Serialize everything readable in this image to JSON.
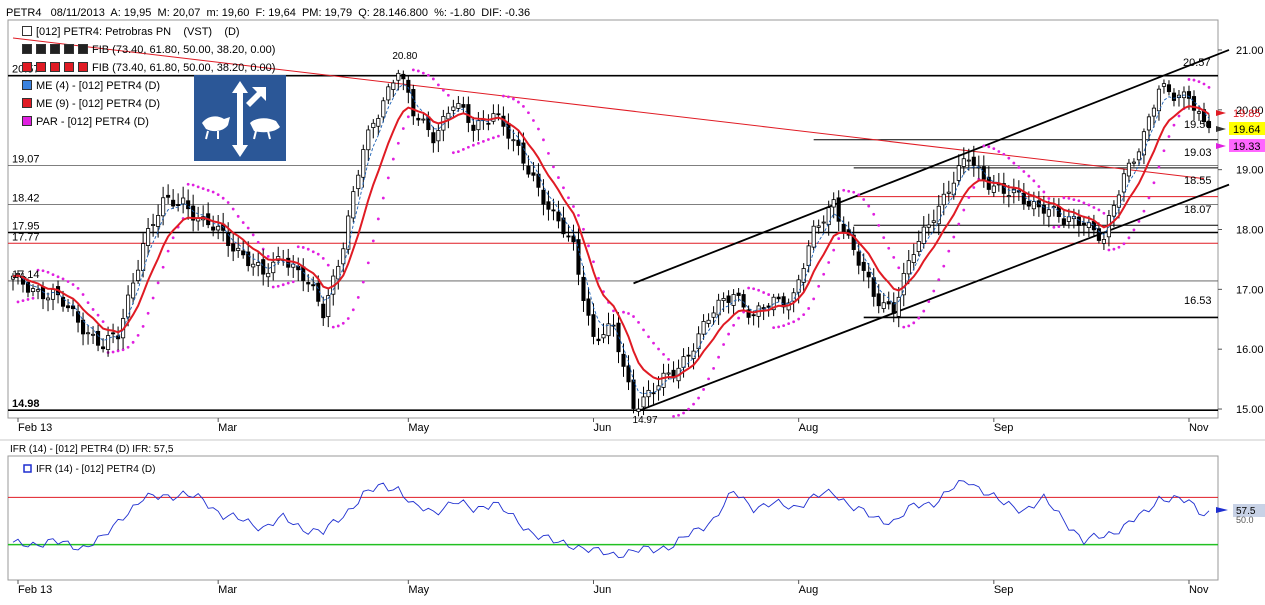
{
  "header": {
    "symbol": "PETR4",
    "date": "08/11/2013",
    "a_label": "A:",
    "a_value": "19,95",
    "m_label": "M:",
    "m_value": "20,07",
    "min_label": "m:",
    "min_value": "19,60",
    "f_label": "F:",
    "f_value": "19,64",
    "pm_label": "PM:",
    "pm_value": "19,79",
    "q_label": "Q:",
    "q_value": "28.146.800",
    "pct_label": "%:",
    "pct_value": "-1.80",
    "dif_label": "DIF:",
    "dif_value": "-0.36"
  },
  "legend": {
    "title": "[012] PETR4: Petrobras PN",
    "title_suffix": "(VST)",
    "title_period": "(D)",
    "fib1": "FIB (73.40, 61.80, 50.00, 38.20, 0.00)",
    "fib2": "FIB (73.40, 61.80, 50.00, 38.20, 0.00)",
    "me4": "ME (4)  - [012] PETR4 (D)",
    "me9": "ME (9)  - [012] PETR4 (D)",
    "par": "PAR  - [012] PETR4 (D)"
  },
  "ifr": {
    "title": "IFR (14)  - [012] PETR4 (D)  IFR: 57,5",
    "legend": "IFR (14)  - [012] PETR4 (D)",
    "value_label": "57.5",
    "ref_label": "50.0",
    "upper": 70,
    "lower": 30
  },
  "colors": {
    "candle_up": "#ffffff",
    "candle_down": "#000000",
    "me4": "#1a5fb4",
    "me9": "#e01b24",
    "par": "#e020e0",
    "ifr": "#1f2fd0",
    "ifr_upper": "#e01b24",
    "ifr_lower": "#22c022"
  },
  "chart_data": {
    "type": "candlestick",
    "y_ticks": [
      "21.00",
      "20.00",
      "19.00",
      "18.00",
      "17.00",
      "16.00",
      "15.00"
    ],
    "ylim": [
      14.85,
      21.2
    ],
    "x_labels": [
      "Feb 13",
      "Mar",
      "May",
      "Jun",
      "Aug",
      "Sep",
      "Nov"
    ],
    "x_tick_values": [
      1,
      41,
      79,
      116,
      157,
      196,
      235
    ],
    "n_bars": 240,
    "right_prices": [
      {
        "label": "20.57",
        "value": 20.57
      },
      {
        "label": "19.85",
        "value": 19.85,
        "color": "#e01b24"
      },
      {
        "label": "19.64",
        "value": 19.64,
        "bg": "#ffff00"
      },
      {
        "label": "19.50",
        "value": 19.5
      },
      {
        "label": "19.33",
        "value": 19.33,
        "bg": "#ff66ff"
      },
      {
        "label": "19.03",
        "value": 19.03
      },
      {
        "label": "18.55",
        "value": 18.55
      },
      {
        "label": "18.07",
        "value": 18.07
      },
      {
        "label": "16.53",
        "value": 16.53
      }
    ],
    "left_levels": [
      {
        "label": "20.57",
        "value": 20.57
      },
      {
        "label": "19.07",
        "value": 19.07
      },
      {
        "label": "18.42",
        "value": 18.42
      },
      {
        "label": "17.95",
        "value": 17.95
      },
      {
        "label": "17.77",
        "value": 17.77
      },
      {
        "label": "17.14",
        "value": 17.14
      },
      {
        "label": "14.98",
        "value": 14.98
      }
    ],
    "annotations": [
      {
        "label": "20.80",
        "x": 77,
        "value": 20.8
      },
      {
        "label": "14.97",
        "x": 125,
        "value": 14.97
      }
    ],
    "keypoints": [
      [
        0,
        17.15
      ],
      [
        8,
        16.9
      ],
      [
        14,
        16.4
      ],
      [
        18,
        16.05
      ],
      [
        21,
        16.2
      ],
      [
        26,
        17.8
      ],
      [
        30,
        18.4
      ],
      [
        34,
        18.5
      ],
      [
        38,
        18.1
      ],
      [
        42,
        17.9
      ],
      [
        46,
        17.6
      ],
      [
        50,
        17.2
      ],
      [
        54,
        17.6
      ],
      [
        58,
        17.2
      ],
      [
        62,
        16.6
      ],
      [
        66,
        17.8
      ],
      [
        70,
        19.3
      ],
      [
        74,
        20.2
      ],
      [
        77,
        20.7
      ],
      [
        80,
        19.9
      ],
      [
        84,
        19.6
      ],
      [
        88,
        20.1
      ],
      [
        92,
        19.7
      ],
      [
        96,
        20.0
      ],
      [
        100,
        19.4
      ],
      [
        104,
        18.9
      ],
      [
        108,
        18.2
      ],
      [
        112,
        17.7
      ],
      [
        116,
        16.2
      ],
      [
        120,
        16.3
      ],
      [
        124,
        15.1
      ],
      [
        128,
        15.3
      ],
      [
        132,
        15.6
      ],
      [
        136,
        16.1
      ],
      [
        140,
        16.6
      ],
      [
        144,
        17.0
      ],
      [
        148,
        16.5
      ],
      [
        152,
        16.8
      ],
      [
        156,
        16.9
      ],
      [
        160,
        17.9
      ],
      [
        164,
        18.5
      ],
      [
        168,
        17.6
      ],
      [
        172,
        16.9
      ],
      [
        176,
        16.7
      ],
      [
        180,
        17.6
      ],
      [
        184,
        18.3
      ],
      [
        188,
        18.8
      ],
      [
        191,
        19.2
      ],
      [
        194,
        18.9
      ],
      [
        198,
        18.6
      ],
      [
        202,
        18.5
      ],
      [
        206,
        18.4
      ],
      [
        210,
        18.1
      ],
      [
        214,
        18.2
      ],
      [
        218,
        17.8
      ],
      [
        222,
        18.9
      ],
      [
        226,
        19.6
      ],
      [
        229,
        20.3
      ],
      [
        232,
        20.25
      ],
      [
        235,
        20.3
      ],
      [
        238,
        19.7
      ]
    ],
    "fib_line": {
      "start": [
        0,
        21.2
      ],
      "end": [
        238,
        18.85
      ]
    },
    "horizontal_lines": [
      20.57,
      19.07,
      18.42,
      17.95,
      17.77,
      17.14,
      16.53,
      14.98,
      19.5,
      19.03,
      18.55,
      18.07
    ],
    "channel_upper": {
      "start": [
        124,
        17.1
      ],
      "end": [
        243,
        21.0
      ]
    },
    "channel_lower": {
      "start": [
        125,
        14.97
      ],
      "end": [
        243,
        18.75
      ]
    },
    "ifr_keypoints": [
      [
        0,
        30
      ],
      [
        8,
        32
      ],
      [
        14,
        28
      ],
      [
        18,
        35
      ],
      [
        22,
        55
      ],
      [
        26,
        68
      ],
      [
        30,
        72
      ],
      [
        34,
        72
      ],
      [
        38,
        68
      ],
      [
        42,
        55
      ],
      [
        46,
        50
      ],
      [
        50,
        45
      ],
      [
        54,
        52
      ],
      [
        58,
        44
      ],
      [
        62,
        40
      ],
      [
        66,
        55
      ],
      [
        70,
        72
      ],
      [
        74,
        80
      ],
      [
        77,
        78
      ],
      [
        80,
        62
      ],
      [
        84,
        58
      ],
      [
        88,
        66
      ],
      [
        92,
        60
      ],
      [
        96,
        66
      ],
      [
        100,
        52
      ],
      [
        104,
        40
      ],
      [
        108,
        32
      ],
      [
        112,
        30
      ],
      [
        116,
        24
      ],
      [
        120,
        22
      ],
      [
        124,
        24
      ],
      [
        128,
        26
      ],
      [
        132,
        30
      ],
      [
        136,
        40
      ],
      [
        140,
        52
      ],
      [
        144,
        74
      ],
      [
        148,
        62
      ],
      [
        152,
        64
      ],
      [
        156,
        62
      ],
      [
        160,
        70
      ],
      [
        164,
        74
      ],
      [
        168,
        62
      ],
      [
        172,
        52
      ],
      [
        176,
        50
      ],
      [
        180,
        62
      ],
      [
        184,
        66
      ],
      [
        188,
        78
      ],
      [
        191,
        84
      ],
      [
        194,
        76
      ],
      [
        198,
        64
      ],
      [
        202,
        60
      ],
      [
        206,
        68
      ],
      [
        210,
        52
      ],
      [
        214,
        32
      ],
      [
        218,
        38
      ],
      [
        222,
        45
      ],
      [
        226,
        56
      ],
      [
        229,
        70
      ],
      [
        232,
        68
      ],
      [
        235,
        66
      ],
      [
        238,
        57
      ]
    ]
  }
}
